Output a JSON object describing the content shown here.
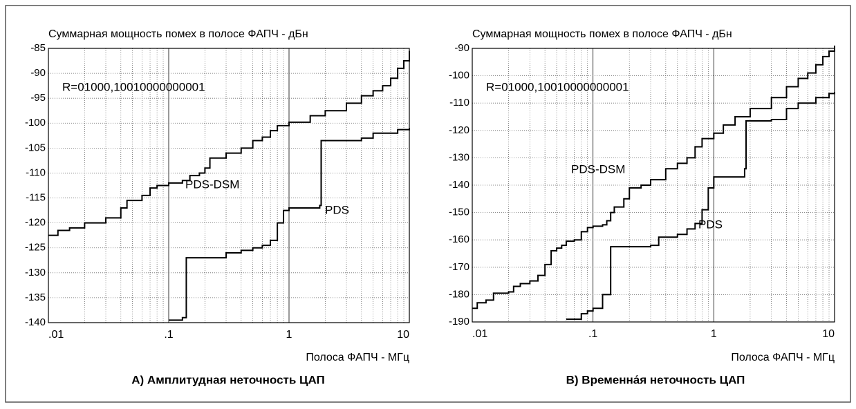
{
  "chart_data": [
    {
      "type": "line",
      "step": "post",
      "xscale": "log",
      "grid": true,
      "minor_grid": true,
      "title": "Суммарная мощность помех в полосе ФАПЧ - дБн",
      "xlabel": "Полоса ФАПЧ - МГц",
      "caption": "А) Амплитудная неточность ЦАП",
      "annotation": "R=01000,10010000000001",
      "xlim": [
        0.01,
        10
      ],
      "ylim": [
        -140,
        -85
      ],
      "xticks": [
        {
          "value": 0.01,
          "label": ".01"
        },
        {
          "value": 0.1,
          "label": ".1"
        },
        1,
        10
      ],
      "yticks": [
        -140,
        -135,
        -130,
        -125,
        -120,
        -115,
        -110,
        -105,
        -100,
        -95,
        -90,
        -85
      ],
      "series": [
        {
          "name": "PDS-DSM",
          "color": "#000000",
          "x": [
            0.01,
            0.012,
            0.015,
            0.02,
            0.03,
            0.04,
            0.045,
            0.06,
            0.07,
            0.08,
            0.1,
            0.13,
            0.15,
            0.18,
            0.2,
            0.22,
            0.3,
            0.4,
            0.5,
            0.6,
            0.7,
            0.8,
            1,
            1.5,
            2,
            3,
            4,
            5,
            6,
            7,
            8,
            9,
            10
          ],
          "values": [
            -122.5,
            -121.5,
            -121,
            -120,
            -119,
            -117,
            -115.5,
            -114.5,
            -113,
            -112.5,
            -112,
            -111.5,
            -110.5,
            -110,
            -109,
            -107,
            -106,
            -105,
            -103.5,
            -102.8,
            -101.5,
            -100.5,
            -99.8,
            -98.5,
            -97.5,
            -96,
            -94.5,
            -93.5,
            -92.5,
            -91,
            -89,
            -87.5,
            -85.5
          ]
        },
        {
          "name": "PDS",
          "color": "#000000",
          "x": [
            0.1,
            0.13,
            0.14,
            0.3,
            0.4,
            0.5,
            0.6,
            0.7,
            0.8,
            0.9,
            1.0,
            1.8,
            1.85,
            4,
            5,
            8,
            10
          ],
          "values": [
            -139.5,
            -139,
            -127,
            -126,
            -125.5,
            -125,
            -124.5,
            -123.5,
            -120,
            -117.5,
            -117,
            -116.5,
            -103.5,
            -103,
            -102,
            -101.3,
            -101
          ]
        }
      ]
    },
    {
      "type": "line",
      "step": "post",
      "xscale": "log",
      "grid": true,
      "minor_grid": true,
      "title": "Суммарная мощность помех в полосе ФАПЧ - дБн",
      "xlabel": "Полоса ФАПЧ - МГц",
      "caption": "В) Временна́я неточность ЦАП",
      "annotation": "R=01000,10010000000001",
      "xlim": [
        0.01,
        10
      ],
      "ylim": [
        -190,
        -90
      ],
      "xticks": [
        {
          "value": 0.01,
          "label": ".01"
        },
        {
          "value": 0.1,
          "label": ".1"
        },
        1,
        10
      ],
      "yticks": [
        -190,
        -180,
        -170,
        -160,
        -150,
        -140,
        -130,
        -120,
        -110,
        -100,
        -90
      ],
      "series": [
        {
          "name": "PDS-DSM",
          "color": "#000000",
          "x": [
            0.01,
            0.011,
            0.013,
            0.015,
            0.02,
            0.022,
            0.025,
            0.03,
            0.035,
            0.04,
            0.045,
            0.05,
            0.055,
            0.06,
            0.07,
            0.08,
            0.09,
            0.1,
            0.12,
            0.13,
            0.14,
            0.15,
            0.18,
            0.2,
            0.25,
            0.3,
            0.4,
            0.5,
            0.6,
            0.7,
            0.8,
            1,
            1.2,
            1.5,
            2,
            3,
            4,
            5,
            6,
            7,
            8,
            9,
            10
          ],
          "values": [
            -185,
            -183,
            -182,
            -179.5,
            -179,
            -177,
            -176,
            -175,
            -173,
            -169,
            -164,
            -163,
            -162,
            -160.5,
            -160,
            -157,
            -155.5,
            -155,
            -154.5,
            -153,
            -150,
            -148,
            -145,
            -141,
            -140,
            -138,
            -134,
            -132,
            -130,
            -126,
            -123,
            -121,
            -118,
            -115,
            -112,
            -108,
            -104,
            -101,
            -99,
            -96,
            -93,
            -91,
            -89
          ]
        },
        {
          "name": "PDS",
          "color": "#000000",
          "x": [
            0.06,
            0.08,
            0.09,
            0.1,
            0.12,
            0.14,
            0.3,
            0.35,
            0.5,
            0.6,
            0.7,
            0.8,
            0.9,
            1.0,
            1.8,
            1.85,
            3,
            4,
            5,
            7,
            9,
            10
          ],
          "values": [
            -189,
            -187,
            -186,
            -185,
            -180,
            -162.5,
            -162,
            -159,
            -158,
            -156,
            -154,
            -149,
            -141,
            -137,
            -134,
            -116.5,
            -116,
            -112,
            -110,
            -108,
            -106.5,
            -106
          ]
        }
      ]
    }
  ]
}
